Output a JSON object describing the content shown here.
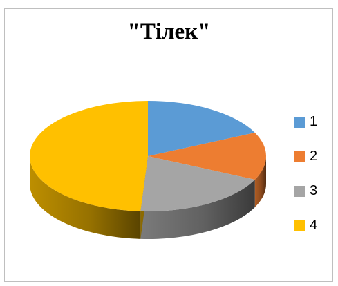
{
  "chart_data": {
    "type": "pie",
    "title": "\"Тілек\"",
    "categories": [
      "1",
      "2",
      "3",
      "4"
    ],
    "values": [
      18,
      14,
      19,
      49
    ],
    "colors": [
      "#5b9bd5",
      "#ed7d31",
      "#a5a5a5",
      "#ffc000"
    ],
    "legend_position": "right",
    "three_d": true
  }
}
